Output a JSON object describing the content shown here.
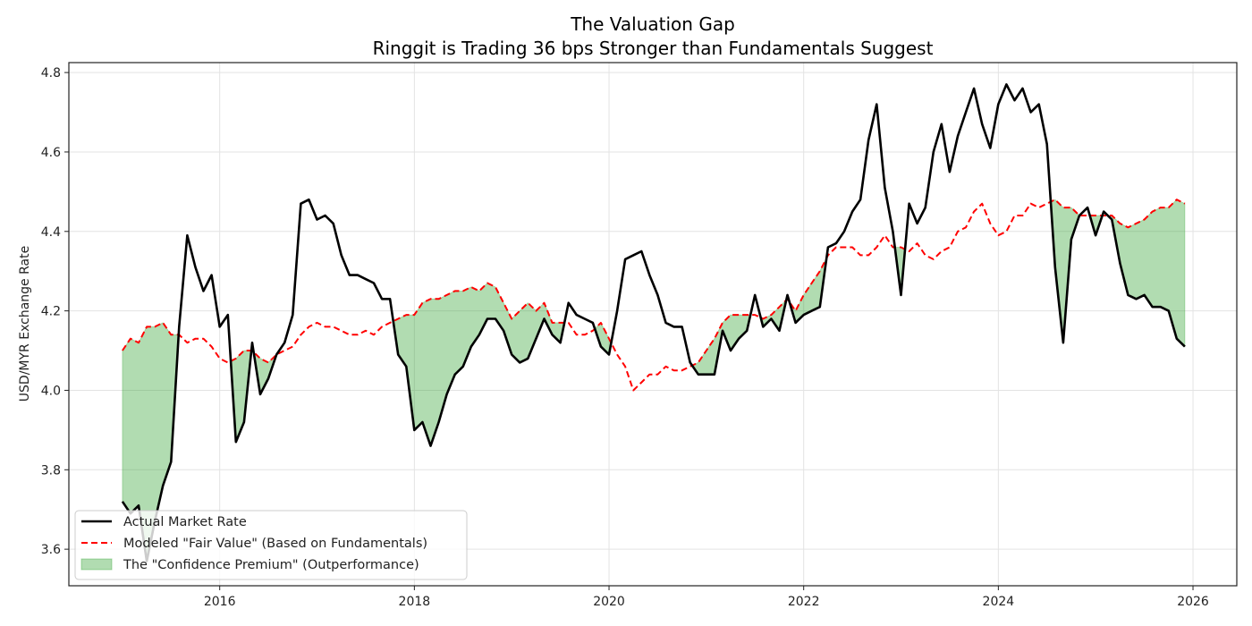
{
  "chart_data": {
    "type": "line",
    "title": "The Valuation Gap",
    "subtitle": "Ringgit is Trading 36 bps Stronger than Fundamentals Suggest",
    "xlabel": "",
    "ylabel": "USD/MYR Exchange Rate",
    "x_start": 2015.0,
    "x_step_years": 0.08333,
    "xlim": [
      2014.45,
      2026.45
    ],
    "ylim": [
      3.508,
      4.825
    ],
    "x_ticks": [
      2016,
      2018,
      2020,
      2022,
      2024,
      2026
    ],
    "x_tick_labels": [
      "2016",
      "2018",
      "2020",
      "2022",
      "2024",
      "2026"
    ],
    "y_ticks": [
      3.6,
      3.8,
      4.0,
      4.2,
      4.4,
      4.6,
      4.8
    ],
    "y_tick_labels": [
      "3.6",
      "3.8",
      "4.0",
      "4.2",
      "4.4",
      "4.6",
      "4.8"
    ],
    "grid": true,
    "legend_position": "lower-left",
    "series": [
      {
        "name": "Actual Market Rate",
        "style": "solid",
        "color": "#000000",
        "values": [
          3.72,
          3.69,
          3.71,
          3.57,
          3.67,
          3.76,
          3.82,
          4.16,
          4.39,
          4.31,
          4.25,
          4.29,
          4.16,
          4.19,
          3.87,
          3.92,
          4.12,
          3.99,
          4.03,
          4.09,
          4.12,
          4.19,
          4.47,
          4.48,
          4.43,
          4.44,
          4.42,
          4.34,
          4.29,
          4.29,
          4.28,
          4.27,
          4.23,
          4.23,
          4.09,
          4.06,
          3.9,
          3.92,
          3.86,
          3.92,
          3.99,
          4.04,
          4.06,
          4.11,
          4.14,
          4.18,
          4.18,
          4.15,
          4.09,
          4.07,
          4.08,
          4.13,
          4.18,
          4.14,
          4.12,
          4.22,
          4.19,
          4.18,
          4.17,
          4.11,
          4.09,
          4.2,
          4.33,
          4.34,
          4.35,
          4.29,
          4.24,
          4.17,
          4.16,
          4.16,
          4.07,
          4.04,
          4.04,
          4.04,
          4.15,
          4.1,
          4.13,
          4.15,
          4.24,
          4.16,
          4.18,
          4.15,
          4.24,
          4.17,
          4.19,
          4.2,
          4.21,
          4.36,
          4.37,
          4.4,
          4.45,
          4.48,
          4.63,
          4.72,
          4.51,
          4.4,
          4.24,
          4.47,
          4.42,
          4.46,
          4.6,
          4.67,
          4.55,
          4.64,
          4.7,
          4.76,
          4.67,
          4.61,
          4.72,
          4.77,
          4.73,
          4.76,
          4.7,
          4.72,
          4.62,
          4.31,
          4.12,
          4.38,
          4.44,
          4.46,
          4.39,
          4.45,
          4.43,
          4.32,
          4.24,
          4.23,
          4.24,
          4.21,
          4.21,
          4.2,
          4.13,
          4.11
        ]
      },
      {
        "name": "Modeled \"Fair Value\" (Based on Fundamentals)",
        "style": "dashed",
        "color": "#ff0000",
        "values": [
          4.1,
          4.13,
          4.12,
          4.16,
          4.16,
          4.17,
          4.14,
          4.14,
          4.12,
          4.13,
          4.13,
          4.11,
          4.08,
          4.07,
          4.08,
          4.1,
          4.1,
          4.08,
          4.07,
          4.09,
          4.1,
          4.11,
          4.14,
          4.16,
          4.17,
          4.16,
          4.16,
          4.15,
          4.14,
          4.14,
          4.15,
          4.14,
          4.16,
          4.17,
          4.18,
          4.19,
          4.19,
          4.22,
          4.23,
          4.23,
          4.24,
          4.25,
          4.25,
          4.26,
          4.25,
          4.27,
          4.26,
          4.22,
          4.18,
          4.2,
          4.22,
          4.2,
          4.22,
          4.17,
          4.17,
          4.17,
          4.14,
          4.14,
          4.15,
          4.17,
          4.13,
          4.09,
          4.06,
          4.0,
          4.02,
          4.04,
          4.04,
          4.06,
          4.05,
          4.05,
          4.06,
          4.07,
          4.1,
          4.13,
          4.17,
          4.19,
          4.19,
          4.19,
          4.19,
          4.18,
          4.19,
          4.21,
          4.23,
          4.2,
          4.24,
          4.27,
          4.3,
          4.34,
          4.36,
          4.36,
          4.36,
          4.34,
          4.34,
          4.36,
          4.39,
          4.36,
          4.36,
          4.35,
          4.37,
          4.34,
          4.33,
          4.35,
          4.36,
          4.4,
          4.41,
          4.45,
          4.47,
          4.42,
          4.39,
          4.4,
          4.44,
          4.44,
          4.47,
          4.46,
          4.47,
          4.48,
          4.46,
          4.46,
          4.44,
          4.44,
          4.44,
          4.44,
          4.44,
          4.42,
          4.41,
          4.42,
          4.43,
          4.45,
          4.46,
          4.46,
          4.48,
          4.47
        ]
      }
    ],
    "fill": {
      "name": "The \"Confidence Premium\" (Outperformance)",
      "between": [
        "Actual Market Rate",
        "Modeled \"Fair Value\" (Based on Fundamentals)"
      ],
      "where": "actual < fair value",
      "color": "#2ca02c",
      "alpha": 0.37
    },
    "legend": [
      {
        "label": "Actual Market Rate",
        "kind": "line-solid",
        "color": "#000000"
      },
      {
        "label": "Modeled \"Fair Value\" (Based on Fundamentals)",
        "kind": "line-dashed",
        "color": "#ff0000"
      },
      {
        "label": "The \"Confidence Premium\" (Outperformance)",
        "kind": "patch",
        "color": "#2ca02c"
      }
    ]
  }
}
